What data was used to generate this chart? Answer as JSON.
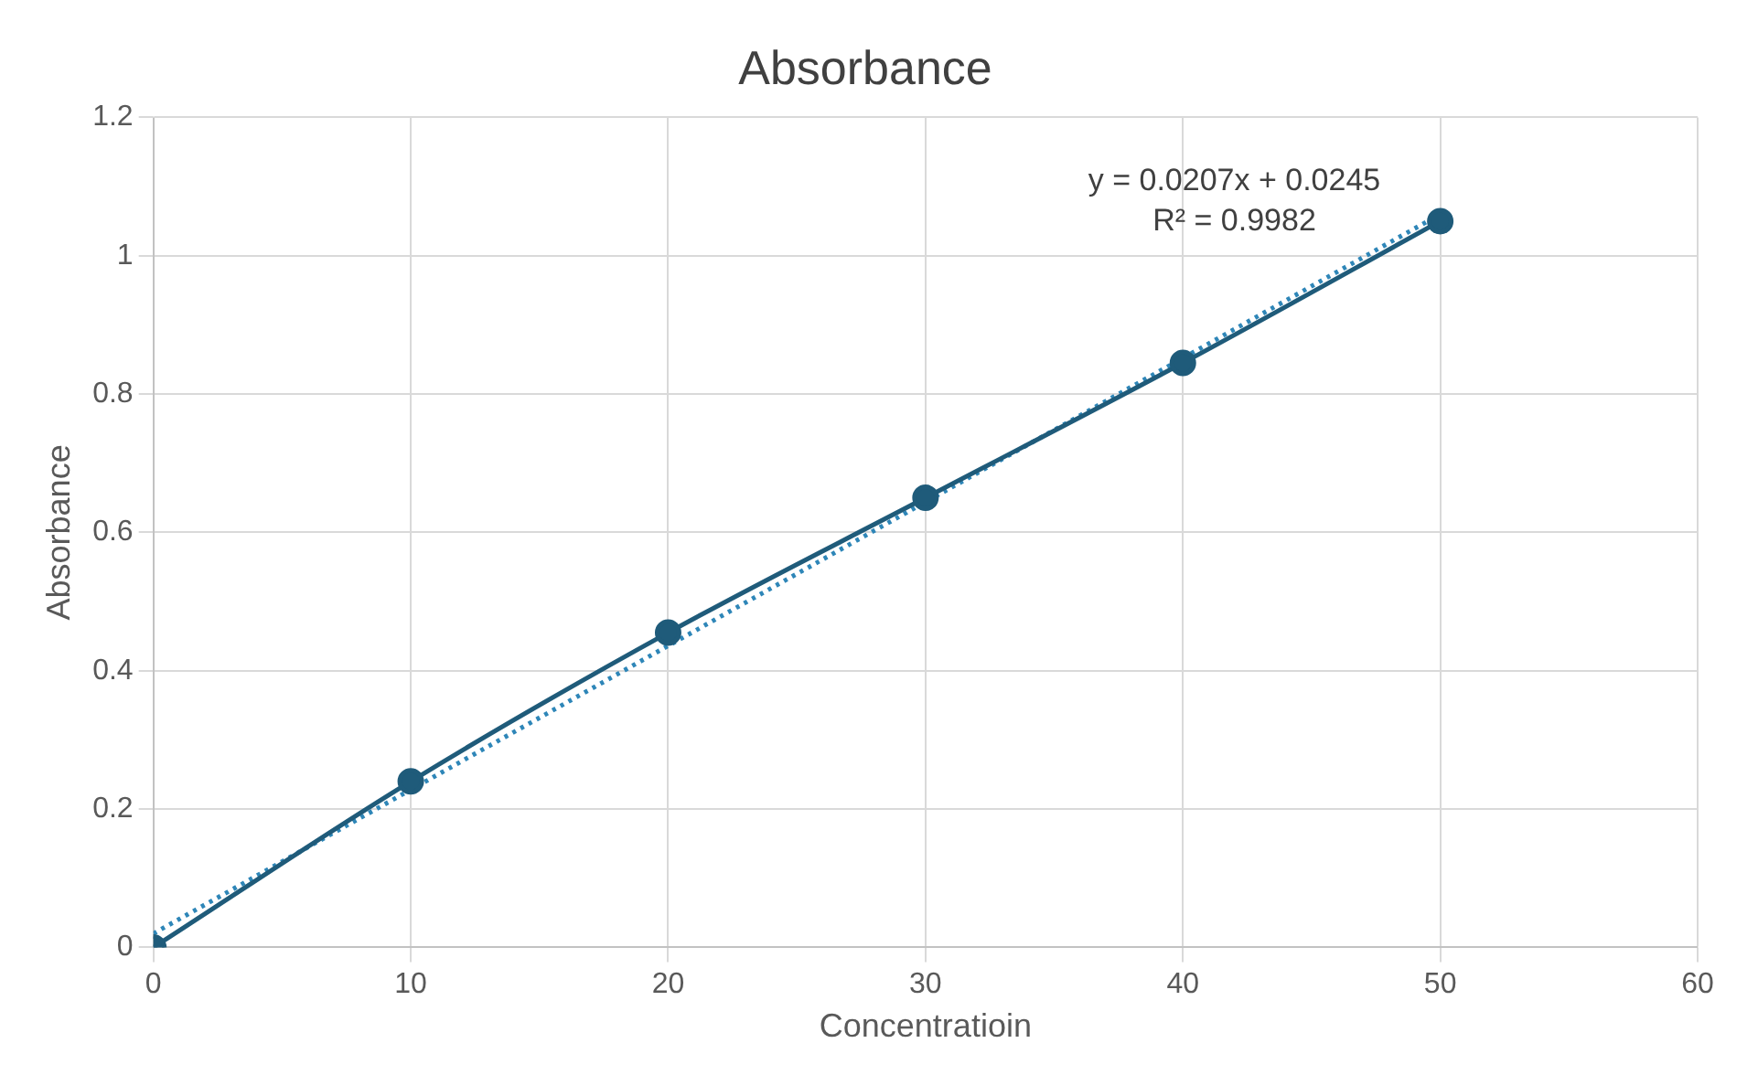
{
  "chart_data": {
    "type": "line",
    "title": "Absorbance",
    "xlabel": "Concentratioin",
    "ylabel": "Absorbance",
    "xlim": [
      0,
      60
    ],
    "xticks": [
      0,
      10,
      20,
      30,
      40,
      50,
      60
    ],
    "ylim": [
      0,
      1.2
    ],
    "yticks": [
      0,
      0.2,
      0.4,
      0.6,
      0.8,
      1,
      1.2
    ],
    "grid": true,
    "legend": false,
    "series": [
      {
        "color": "#1f5b7a",
        "x": [
          0,
          10,
          20,
          30,
          40,
          50
        ],
        "values": [
          0,
          0.24,
          0.455,
          0.65,
          0.845,
          1.05
        ],
        "marker": "circle",
        "line_style": "solid"
      },
      {
        "color": "#2e86b8",
        "x": [
          0,
          50
        ],
        "values": [
          0.02,
          1.06
        ],
        "marker": "none",
        "line_style": "dotted"
      }
    ],
    "annotations": [
      "y = 0.0207x + 0.0245",
      "R² = 0.9982"
    ]
  }
}
